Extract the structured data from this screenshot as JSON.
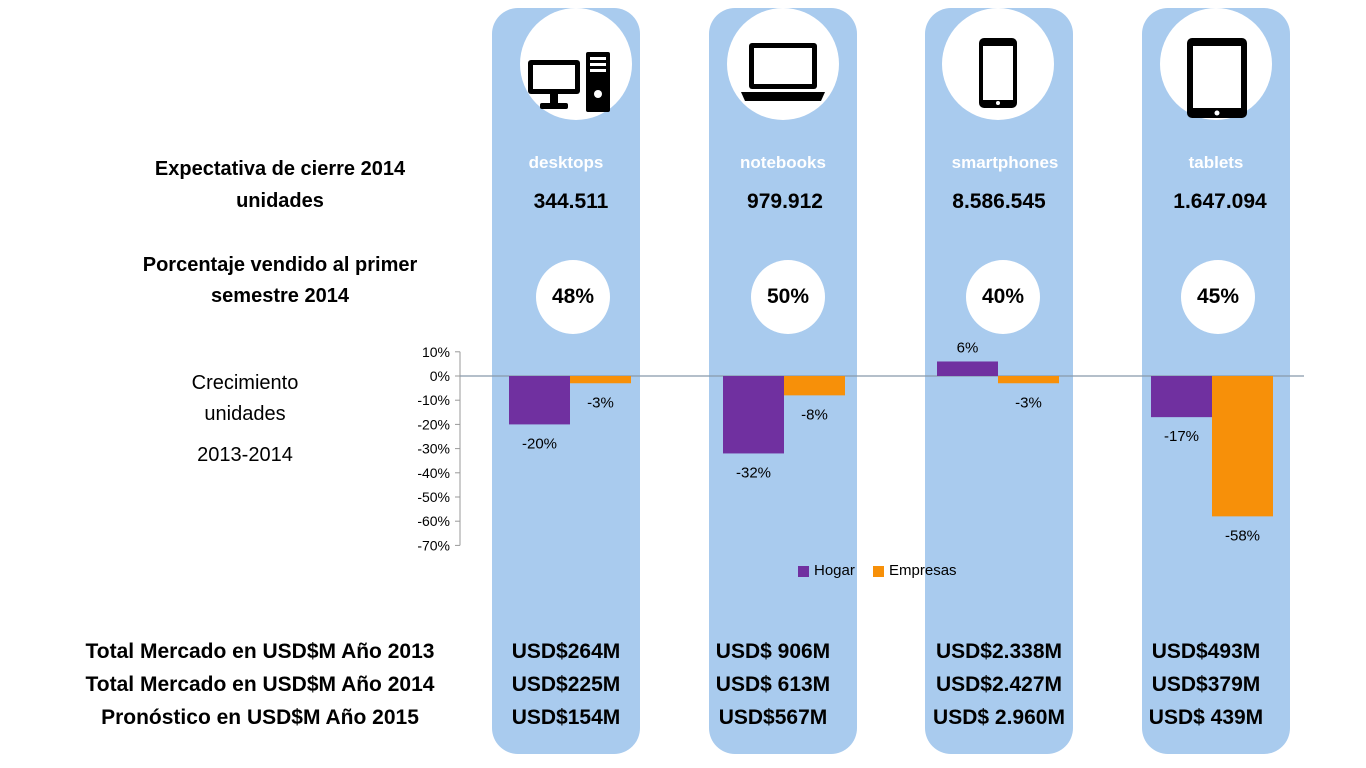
{
  "rows": {
    "expectativa": [
      "Expectativa de cierre 2014",
      "unidades"
    ],
    "porcentaje": [
      "Porcentaje vendido al primer",
      "semestre 2014"
    ],
    "crecimiento": [
      "Crecimiento",
      "unidades",
      "2013-2014"
    ],
    "usd2013": "Total Mercado en USD$M Año 2013",
    "usd2014": "Total Mercado en USD$M Año 2014",
    "usd2015": "Pronóstico en USD$M Año 2015"
  },
  "categories": [
    {
      "name": "desktops",
      "icon": "desktop-computer-icon",
      "units": "344.511",
      "pct": "48%",
      "usd2013": "USD$264M",
      "usd2014": "USD$225M",
      "usd2015": "USD$154M"
    },
    {
      "name": "notebooks",
      "icon": "laptop-icon",
      "units": "979.912",
      "pct": "50%",
      "usd2013": "USD$ 906M",
      "usd2014": "USD$ 613M",
      "usd2015": "USD$567M"
    },
    {
      "name": "smartphones",
      "icon": "smartphone-icon",
      "units": "8.586.545",
      "pct": "40%",
      "usd2013": "USD$2.338M",
      "usd2014": "USD$2.427M",
      "usd2015": "USD$ 2.960M"
    },
    {
      "name": "tablets",
      "icon": "tablet-icon",
      "units": "1.647.094",
      "pct": "45%",
      "usd2013": "USD$493M",
      "usd2014": "USD$379M",
      "usd2015": "USD$ 439M"
    }
  ],
  "chart_data": {
    "type": "bar",
    "categories": [
      "desktops",
      "notebooks",
      "smartphones",
      "tablets"
    ],
    "series": [
      {
        "name": "Hogar",
        "color": "#7030a0",
        "values": [
          -20,
          -32,
          6,
          -17
        ],
        "labels": [
          "-20%",
          "-32%",
          "6%",
          "-17%"
        ]
      },
      {
        "name": "Empresas",
        "color": "#f79009",
        "values": [
          -3,
          -8,
          -3,
          -58
        ],
        "labels": [
          "-3%",
          "-8%",
          "-3%",
          "-58%"
        ]
      }
    ],
    "ylim": [
      -70,
      10
    ],
    "yticks": [
      10,
      0,
      -10,
      -20,
      -30,
      -40,
      -50,
      -60,
      -70
    ],
    "ytick_labels": [
      "10%",
      "0%",
      "-10%",
      "-20%",
      "-30%",
      "-40%",
      "-50%",
      "-60%",
      "-70%"
    ],
    "legend_position": "bottom"
  },
  "colors": {
    "column_bg": "#a9cbee",
    "hogar": "#7030a0",
    "empresas": "#f79009"
  }
}
